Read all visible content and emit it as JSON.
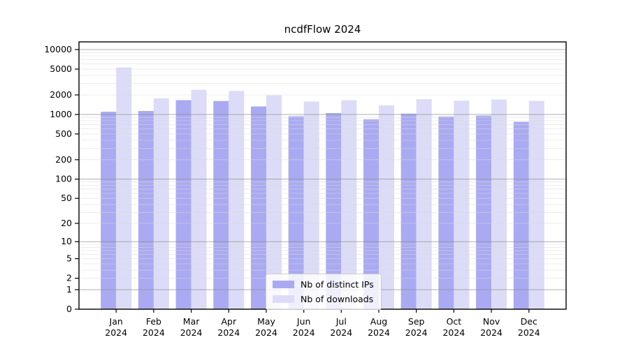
{
  "title": "ncdfFlow 2024",
  "colors": {
    "distinct_ips": "#aaaaf2",
    "downloads": "#dcdcf8",
    "major_grid": "#8c8c8c",
    "minor_grid": "#d9d9d9",
    "spine": "#000000",
    "text": "#000000",
    "legend_border": "#cccccc"
  },
  "legend": {
    "items": [
      {
        "name": "distinct-ips",
        "label": "Nb of distinct IPs",
        "color": "#aaaaf2"
      },
      {
        "name": "downloads",
        "label": "Nb of downloads",
        "color": "#dcdcf8"
      }
    ]
  },
  "y_axis": {
    "tick_labels": [
      "10000",
      "5000",
      "2000",
      "1000",
      "500",
      "200",
      "100",
      "50",
      "20",
      "10",
      "5",
      "2",
      "1",
      "0"
    ],
    "tick_values": [
      10000,
      5000,
      2000,
      1000,
      500,
      200,
      100,
      50,
      20,
      10,
      5,
      2,
      1,
      0
    ]
  },
  "x_axis": {
    "year_label": "2024",
    "month_labels": [
      "Jan",
      "Feb",
      "Mar",
      "Apr",
      "May",
      "Jun",
      "Jul",
      "Aug",
      "Sep",
      "Oct",
      "Nov",
      "Dec"
    ]
  },
  "chart_data": {
    "type": "bar",
    "title": "ncdfFlow 2024",
    "categories": [
      "Jan 2024",
      "Feb 2024",
      "Mar 2024",
      "Apr 2024",
      "May 2024",
      "Jun 2024",
      "Jul 2024",
      "Aug 2024",
      "Sep 2024",
      "Oct 2024",
      "Nov 2024",
      "Dec 2024"
    ],
    "series": [
      {
        "name": "Nb of distinct IPs",
        "color": "#aaaaf2",
        "values": [
          1100,
          1130,
          1660,
          1610,
          1330,
          940,
          1050,
          840,
          1030,
          930,
          960,
          770
        ]
      },
      {
        "name": "Nb of downloads",
        "color": "#dcdcf8",
        "values": [
          5300,
          1770,
          2400,
          2310,
          1970,
          1580,
          1660,
          1380,
          1720,
          1630,
          1700,
          1620
        ]
      }
    ],
    "xlabel": "",
    "ylabel": "",
    "yscale": "log10(value+1)",
    "ylim": [
      0,
      12800
    ],
    "yticks": [
      0,
      1,
      2,
      5,
      10,
      20,
      50,
      100,
      200,
      500,
      1000,
      2000,
      5000,
      10000
    ],
    "grid": "major dark gray at powers of 10, minor light gray at 2-9 per decade, drawn over bars",
    "legend_position": "lower center inside axes"
  }
}
